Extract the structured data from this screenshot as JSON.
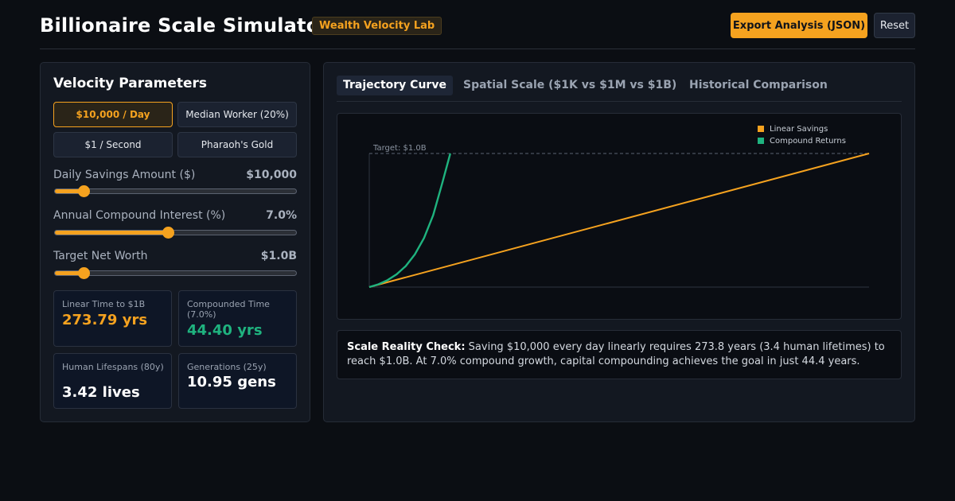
{
  "header": {
    "title": "Billionaire Scale Simulator",
    "badge": "Wealth Velocity Lab",
    "export_label": "Export Analysis (JSON)",
    "reset_label": "Reset"
  },
  "params_panel": {
    "title": "Velocity Parameters",
    "presets": [
      {
        "label": "$10,000 / Day",
        "active": true
      },
      {
        "label": "Median Worker (20%)",
        "active": false
      },
      {
        "label": "$1 / Second",
        "active": false
      },
      {
        "label": "Pharaoh's Gold",
        "active": false
      }
    ],
    "sliders": [
      {
        "label": "Daily Savings Amount ($)",
        "value": "$10,000",
        "position_fraction": 0.12
      },
      {
        "label": "Annual Compound Interest (%)",
        "value": "7.0%",
        "position_fraction": 0.47
      },
      {
        "label": "Target Net Worth",
        "value": "$1.0B",
        "position_fraction": 0.12
      }
    ],
    "stats": [
      {
        "label": "Linear Time to $1B",
        "value": "273.79 yrs",
        "color": "#f5a21f"
      },
      {
        "label": "Compounded Time (7.0%)",
        "value": "44.40 yrs",
        "color": "#1fb37f"
      },
      {
        "label": "Human Lifespans (80y)",
        "value": "3.42 lives",
        "color": "#ffffff"
      },
      {
        "label": "Generations (25y)",
        "value": "10.95 gens",
        "color": "#ffffff"
      }
    ]
  },
  "tabs": [
    {
      "label": "Trajectory Curve",
      "active": true
    },
    {
      "label": "Spatial Scale ($1K vs $1M vs $1B)",
      "active": false
    },
    {
      "label": "Historical Comparison",
      "active": false
    }
  ],
  "chart_data": {
    "type": "line",
    "target_label": "Target: $1.0B",
    "target_value": 1000000000,
    "xlim": [
      0,
      273.79
    ],
    "ylim": [
      0,
      1000000000
    ],
    "grid": false,
    "legend_placement": "top-right",
    "series": [
      {
        "name": "Linear Savings",
        "color": "#f5a21f",
        "x": [
          0,
          273.79
        ],
        "y": [
          0,
          1000000000
        ]
      },
      {
        "name": "Compound Returns",
        "color": "#1fb37f",
        "x": [
          0,
          5,
          10,
          15,
          20,
          25,
          30,
          35,
          40,
          44.4
        ],
        "y": [
          0,
          21000000,
          52000000,
          96000000,
          158000000,
          245000000,
          367000000,
          538000000,
          778000000,
          1000000000
        ]
      }
    ]
  },
  "insight": {
    "heading": "Scale Reality Check:",
    "text": "Saving $10,000 every day linearly requires 273.8 years (3.4 human lifetimes) to reach $1.0B. At 7.0% compound growth, capital compounding achieves the goal in just 44.4 years."
  }
}
